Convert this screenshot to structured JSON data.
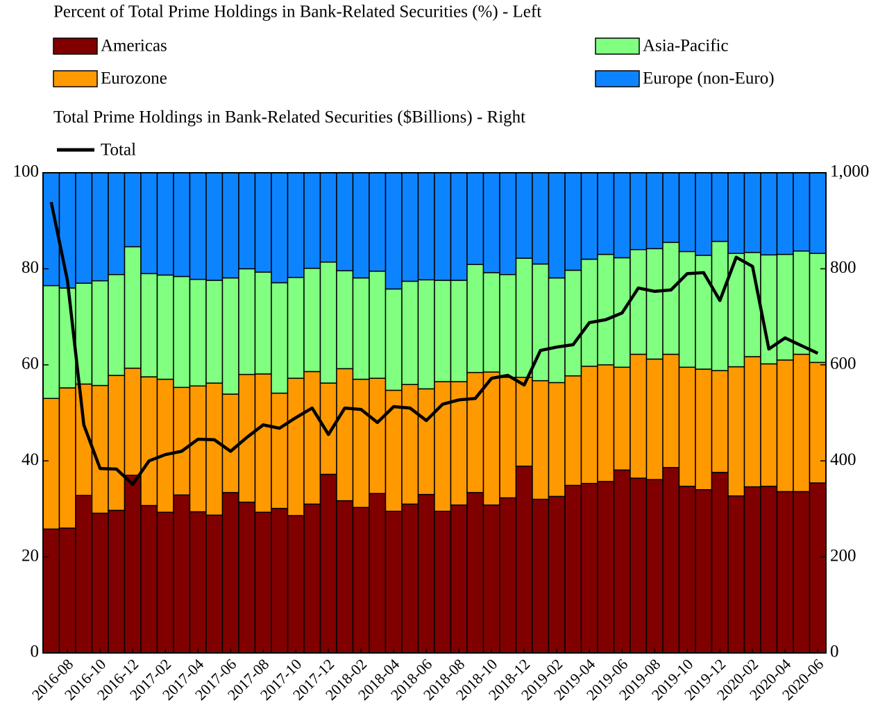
{
  "chart_data": {
    "type": "bar",
    "stacked": true,
    "legend_title_left": "Percent of Total Prime Holdings in Bank-Related Securities (%) - Left",
    "legend_title_right": "Total Prime Holdings in Bank-Related Securities ($Billions) - Right",
    "categories": [
      null,
      "2016-08",
      null,
      "2016-10",
      null,
      "2016-12",
      null,
      "2017-02",
      null,
      "2017-04",
      null,
      "2017-06",
      null,
      "2017-08",
      null,
      "2017-10",
      null,
      "2017-12",
      null,
      "2018-02",
      null,
      "2018-04",
      null,
      "2018-06",
      null,
      "2018-08",
      null,
      "2018-10",
      null,
      "2018-12",
      null,
      "2019-02",
      null,
      "2019-04",
      null,
      "2019-06",
      null,
      "2019-08",
      null,
      "2019-10",
      null,
      "2019-12",
      null,
      "2020-02",
      null,
      "2020-04",
      null,
      "2020-06"
    ],
    "series": [
      {
        "name": "Americas",
        "color": "#800000",
        "values": [
          25.8,
          26.0,
          32.8,
          29.1,
          29.7,
          37.0,
          30.7,
          29.3,
          32.9,
          29.4,
          28.7,
          33.4,
          31.4,
          29.3,
          30.1,
          28.6,
          31.0,
          37.2,
          31.7,
          30.3,
          33.2,
          29.5,
          31.0,
          33.0,
          29.5,
          30.8,
          33.4,
          30.8,
          32.3,
          38.9,
          32.0,
          32.6,
          34.9,
          35.3,
          35.7,
          38.1,
          36.4,
          36.1,
          38.6,
          34.7,
          34.0,
          37.6,
          32.7,
          34.6,
          34.7,
          33.6,
          33.6,
          35.4
        ]
      },
      {
        "name": "Eurozone",
        "color": "#ff9900",
        "values": [
          27.2,
          29.2,
          23.2,
          26.6,
          28.1,
          22.3,
          26.8,
          27.7,
          22.4,
          26.2,
          27.5,
          20.5,
          26.6,
          28.8,
          24.0,
          28.6,
          27.6,
          19.0,
          27.5,
          26.7,
          24.0,
          25.2,
          24.9,
          22.0,
          27.0,
          25.7,
          25.0,
          27.7,
          25.1,
          18.5,
          24.7,
          23.7,
          22.8,
          24.4,
          24.3,
          21.4,
          25.8,
          25.1,
          23.6,
          24.8,
          25.1,
          21.2,
          26.9,
          27.1,
          25.5,
          27.4,
          28.6,
          25.1
        ]
      },
      {
        "name": "Asia-Pacific",
        "color": "#80ff80",
        "values": [
          23.5,
          20.8,
          21.0,
          21.8,
          21.0,
          25.3,
          21.5,
          21.7,
          23.1,
          22.2,
          21.4,
          24.2,
          22.0,
          21.2,
          23.0,
          21.0,
          21.5,
          25.2,
          20.4,
          21.1,
          22.3,
          21.1,
          21.5,
          22.7,
          21.1,
          21.1,
          22.5,
          20.7,
          21.4,
          24.8,
          24.3,
          21.8,
          22.0,
          22.3,
          23.0,
          22.8,
          21.8,
          23.0,
          23.3,
          24.1,
          23.7,
          26.9,
          23.6,
          21.7,
          22.7,
          22.0,
          21.5,
          22.7
        ]
      },
      {
        "name": "Europe (non-Euro)",
        "color": "#0d84ff",
        "values": [
          23.5,
          24.0,
          23.0,
          22.5,
          21.2,
          15.4,
          21.0,
          21.3,
          21.6,
          22.2,
          22.4,
          21.9,
          20.0,
          20.7,
          22.9,
          21.8,
          19.9,
          18.6,
          20.4,
          21.9,
          20.5,
          24.2,
          22.6,
          22.3,
          22.4,
          22.4,
          19.1,
          20.8,
          21.2,
          17.8,
          19.0,
          21.9,
          20.3,
          18.0,
          17.0,
          17.7,
          16.0,
          15.8,
          14.5,
          16.4,
          17.2,
          14.3,
          16.8,
          16.6,
          17.1,
          17.0,
          16.3,
          16.8
        ]
      },
      {
        "name": "Total",
        "color": "#000000",
        "type": "line",
        "axis": "y2",
        "values": [
          939,
          775,
          475,
          384,
          383,
          351,
          400,
          413,
          420,
          445,
          444,
          420,
          449,
          475,
          468,
          490,
          510,
          455,
          510,
          507,
          480,
          513,
          510,
          484,
          518,
          527,
          530,
          572,
          578,
          558,
          630,
          637,
          642,
          688,
          694,
          708,
          760,
          753,
          756,
          790,
          792,
          734,
          824,
          805,
          633,
          656,
          640,
          624
        ]
      }
    ],
    "ylim": [
      0,
      100
    ],
    "yticks": [
      0,
      20,
      40,
      60,
      80,
      100
    ],
    "y2lim": [
      0,
      1000
    ],
    "y2ticks": [
      0,
      200,
      400,
      600,
      800,
      {
        "value": 1000,
        "label": "1,000"
      }
    ]
  }
}
